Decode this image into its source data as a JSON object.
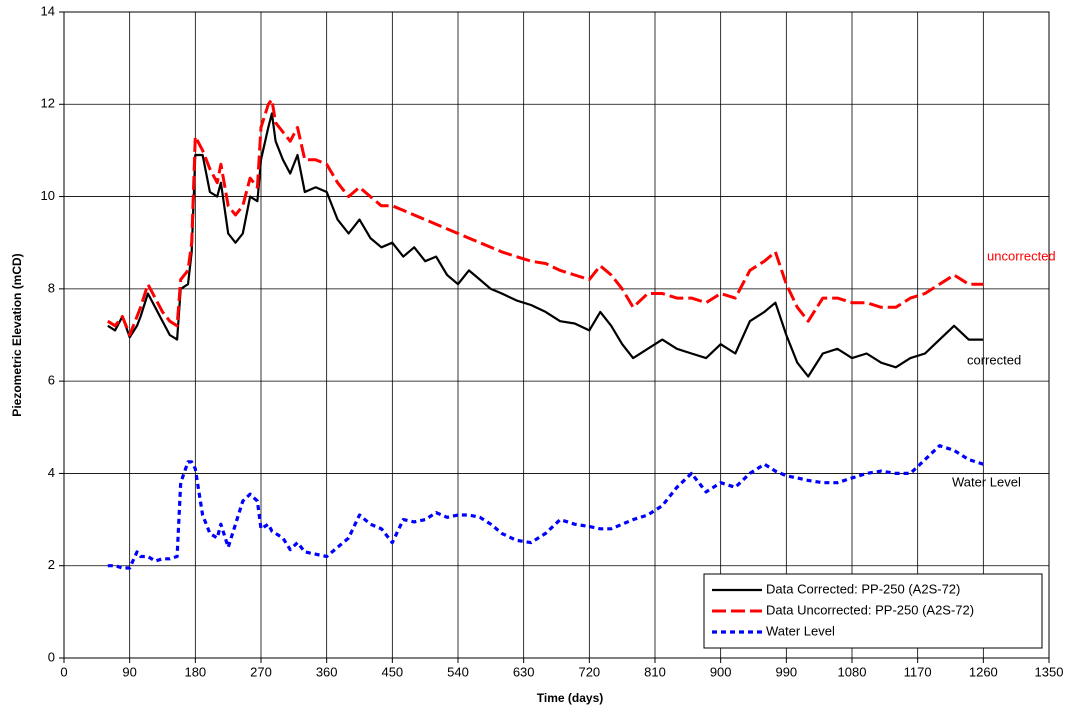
{
  "chart_data": {
    "type": "line",
    "xlabel": "Time (days)",
    "ylabel": "Piezometric Elevation (mCD)",
    "xlim": [
      0,
      1350
    ],
    "ylim": [
      0,
      14
    ],
    "xticks": [
      0,
      90,
      180,
      270,
      360,
      450,
      540,
      630,
      720,
      810,
      900,
      990,
      1080,
      1170,
      1260,
      1350
    ],
    "yticks": [
      0,
      2,
      4,
      6,
      8,
      10,
      12,
      14
    ],
    "grid": true,
    "legend": "lower right",
    "annotations": [
      "uncorrected",
      "corrected",
      "Water Level"
    ],
    "x": [
      60,
      70,
      80,
      90,
      100,
      105,
      115,
      125,
      135,
      145,
      155,
      160,
      170,
      175,
      180,
      190,
      200,
      210,
      215,
      225,
      235,
      245,
      255,
      265,
      270,
      280,
      285,
      290,
      300,
      310,
      320,
      330,
      345,
      360,
      375,
      390,
      405,
      420,
      435,
      450,
      465,
      480,
      495,
      510,
      525,
      540,
      555,
      570,
      585,
      600,
      620,
      640,
      660,
      680,
      700,
      720,
      735,
      750,
      765,
      780,
      800,
      820,
      840,
      860,
      880,
      900,
      920,
      940,
      960,
      975,
      990,
      1005,
      1020,
      1040,
      1060,
      1080,
      1100,
      1120,
      1140,
      1160,
      1180,
      1200,
      1220,
      1240,
      1260
    ],
    "series": [
      {
        "name": "Data Corrected: PP-250 (A2S-72)",
        "color": "#000000",
        "dash": "solid",
        "values": [
          7.2,
          7.1,
          7.4,
          6.95,
          7.2,
          7.4,
          7.9,
          7.6,
          7.3,
          7.0,
          6.9,
          8.0,
          8.1,
          8.8,
          10.9,
          10.9,
          10.1,
          10.0,
          10.3,
          9.2,
          9.0,
          9.2,
          10.0,
          9.9,
          10.8,
          11.5,
          11.8,
          11.2,
          10.8,
          10.5,
          10.9,
          10.1,
          10.2,
          10.1,
          9.5,
          9.2,
          9.5,
          9.1,
          8.9,
          9.0,
          8.7,
          8.9,
          8.6,
          8.7,
          8.3,
          8.1,
          8.4,
          8.2,
          8.0,
          7.9,
          7.75,
          7.65,
          7.5,
          7.3,
          7.25,
          7.1,
          7.5,
          7.2,
          6.8,
          6.5,
          6.7,
          6.9,
          6.7,
          6.6,
          6.5,
          6.8,
          6.6,
          7.3,
          7.5,
          7.7,
          7.0,
          6.4,
          6.1,
          6.6,
          6.7,
          6.5,
          6.6,
          6.4,
          6.3,
          6.5,
          6.6,
          6.9,
          7.2,
          6.9,
          6.9
        ]
      },
      {
        "name": "Data Uncorrected: PP-250 (A2S-72)",
        "color": "#ff0000",
        "dash": "dashed",
        "values": [
          7.3,
          7.2,
          7.4,
          7.0,
          7.4,
          7.6,
          8.1,
          7.8,
          7.5,
          7.3,
          7.2,
          8.2,
          8.4,
          9.0,
          11.3,
          11.0,
          10.6,
          10.3,
          10.7,
          9.8,
          9.6,
          9.8,
          10.4,
          10.2,
          11.5,
          12.0,
          12.1,
          11.6,
          11.4,
          11.2,
          11.5,
          10.8,
          10.8,
          10.7,
          10.3,
          10.0,
          10.2,
          10.0,
          9.8,
          9.8,
          9.7,
          9.6,
          9.5,
          9.4,
          9.3,
          9.2,
          9.1,
          9.0,
          8.9,
          8.8,
          8.7,
          8.6,
          8.55,
          8.4,
          8.3,
          8.2,
          8.5,
          8.3,
          8.0,
          7.6,
          7.9,
          7.9,
          7.8,
          7.8,
          7.7,
          7.9,
          7.8,
          8.4,
          8.6,
          8.8,
          8.1,
          7.6,
          7.3,
          7.8,
          7.8,
          7.7,
          7.7,
          7.6,
          7.6,
          7.8,
          7.9,
          8.1,
          8.3,
          8.1,
          8.1
        ]
      },
      {
        "name": "Water Level",
        "color": "#0000ff",
        "dash": "dotted",
        "values": [
          2.0,
          2.0,
          1.95,
          1.95,
          2.3,
          2.2,
          2.2,
          2.1,
          2.15,
          2.15,
          2.2,
          3.8,
          4.25,
          4.25,
          4.1,
          3.1,
          2.7,
          2.6,
          2.9,
          2.4,
          2.9,
          3.4,
          3.55,
          3.4,
          2.8,
          2.9,
          2.75,
          2.7,
          2.6,
          2.35,
          2.5,
          2.3,
          2.25,
          2.2,
          2.4,
          2.6,
          3.1,
          2.9,
          2.8,
          2.5,
          3.0,
          2.95,
          3.0,
          3.15,
          3.05,
          3.1,
          3.1,
          3.05,
          2.9,
          2.7,
          2.55,
          2.5,
          2.7,
          3.0,
          2.9,
          2.85,
          2.8,
          2.8,
          2.9,
          3.0,
          3.1,
          3.3,
          3.7,
          4.0,
          3.6,
          3.8,
          3.7,
          4.0,
          4.2,
          4.05,
          3.95,
          3.9,
          3.85,
          3.8,
          3.8,
          3.9,
          4.0,
          4.05,
          4.0,
          4.0,
          4.3,
          4.6,
          4.5,
          4.3,
          4.2
        ]
      }
    ]
  }
}
